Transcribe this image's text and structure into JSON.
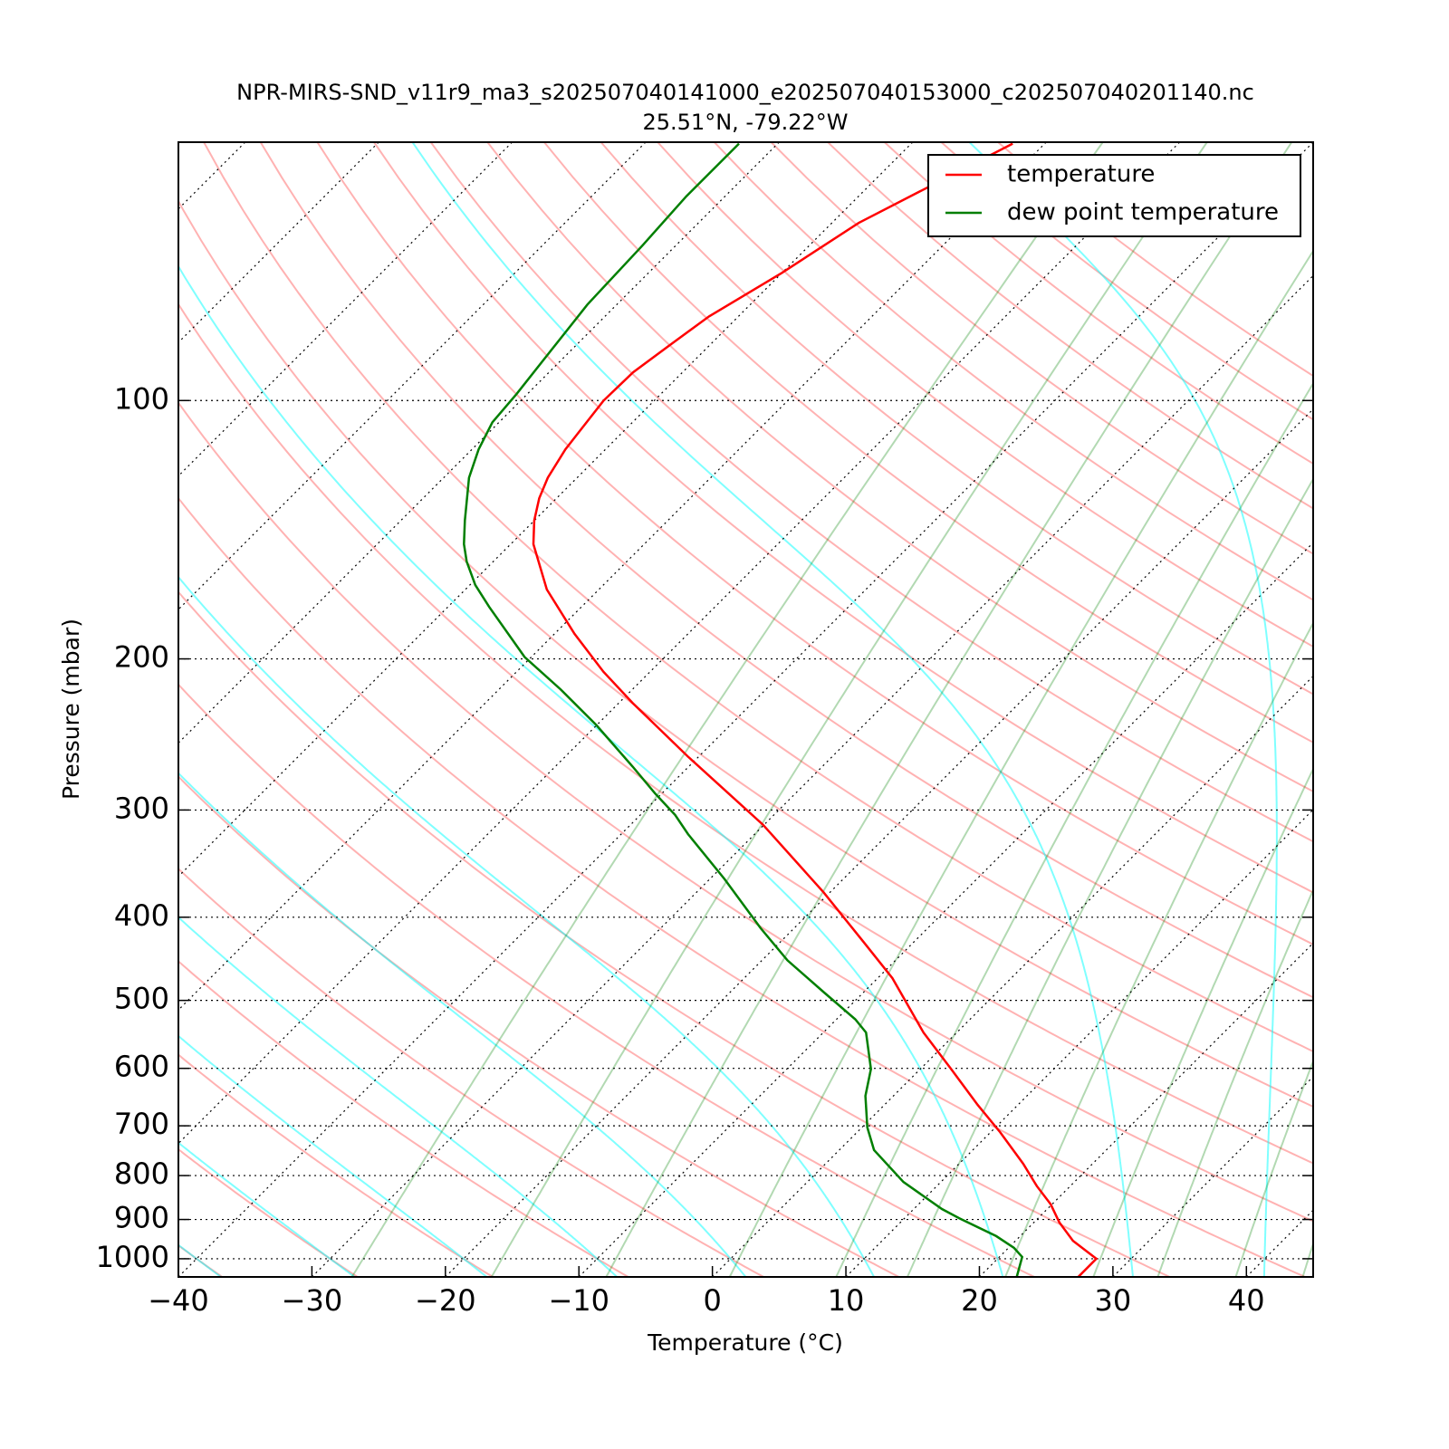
{
  "chart_data": {
    "type": "skewt",
    "title": "NPR-MIRS-SND_v11r9_ma3_s202507040141000_e202507040153000_c202507040201140.nc",
    "subtitle": "25.51°N, -79.22°W",
    "xlabel": "Temperature (°C)",
    "ylabel": "Pressure (mbar)",
    "xlim": [
      -40,
      45
    ],
    "ylim": [
      1050,
      50
    ],
    "log_y": true,
    "xticks": [
      {
        "value": -40,
        "label": "−40"
      },
      {
        "value": -30,
        "label": "−30"
      },
      {
        "value": -20,
        "label": "−20"
      },
      {
        "value": -10,
        "label": "−10"
      },
      0,
      10,
      20,
      30,
      40
    ],
    "yticks": [
      100,
      200,
      300,
      400,
      500,
      600,
      700,
      800,
      900,
      1000
    ],
    "grid": true,
    "dry_adiabats": true,
    "moist_adiabats": true,
    "mixing_lines": true,
    "legend": "upper right",
    "series": [
      {
        "name": "temperature",
        "color": "#ff0000",
        "x": [
          27.4,
          27.4,
          24.3,
          21.9,
          19.9,
          17.5,
          14.8,
          10.7,
          7.0,
          2.3,
          -2.5,
          -8.9,
          -13.7,
          -20.5,
          -30.1,
          -40.8,
          -49.0,
          -53.5,
          -58.5,
          -63.9,
          -68.3,
          -70.0,
          -71.3,
          -72.2,
          -73.0,
          -73.8,
          -73.7,
          -73.0,
          -72.2,
          -70.0,
          -68.0,
          -62.4
        ],
        "y": [
          1050,
          1000,
          953,
          907,
          864,
          823,
          775,
          712,
          662,
          601,
          545,
          471,
          428,
          374,
          312,
          260,
          225,
          207,
          187,
          166,
          147,
          138,
          130,
          123,
          114,
          100,
          92.7,
          86.3,
          79.8,
          71,
          62.1,
          50.2
        ]
      },
      {
        "name": "dew point temperature",
        "color": "#007f00",
        "x": [
          22.8,
          21.7,
          20.4,
          18.2,
          14.1,
          12.1,
          7.2,
          2.6,
          0.4,
          -2.1,
          -3.7,
          -6.8,
          -8.6,
          -13.0,
          -18.1,
          -22.5,
          -28.9,
          -35.0,
          -37.4,
          -40.5,
          -44.2,
          -50.0,
          -55.4,
          -60.5,
          -66.9,
          -69.6,
          -72.0,
          -73.5,
          -75.2,
          -78.1,
          -79.5,
          -80.5,
          -80.8,
          -81.5,
          -82.2,
          -82.5,
          -82.9,
          -82.9
        ],
        "y": [
          1050,
          995,
          971,
          941,
          897,
          875,
          814,
          747,
          703,
          646,
          601,
          545,
          526,
          489,
          449,
          412,
          361,
          320,
          304,
          287,
          267,
          239,
          217,
          199,
          174,
          164,
          154,
          147,
          138,
          123,
          114,
          106,
          98.3,
          87.3,
          77.3,
          66,
          57.8,
          50.2
        ]
      }
    ]
  }
}
